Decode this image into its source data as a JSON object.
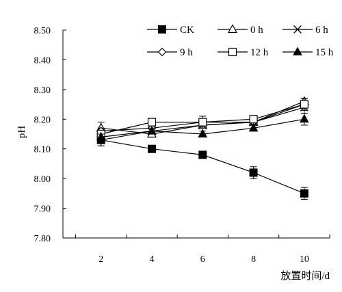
{
  "chart_data": {
    "type": "line",
    "title": "",
    "xlabel": "放置时间/d",
    "ylabel": "pH",
    "x": [
      2,
      4,
      6,
      8,
      10
    ],
    "xticks": [
      "2",
      "4",
      "6",
      "8",
      "10"
    ],
    "xlim": [
      0.5,
      11
    ],
    "ylim": [
      7.8,
      8.5
    ],
    "yticks": [
      "7.80",
      "7.90",
      "8.00",
      "8.10",
      "8.20",
      "8.30",
      "8.40",
      "8.50"
    ],
    "grid": false,
    "legend_position": "top",
    "series": [
      {
        "name": "CK",
        "marker": "filled-square",
        "values": [
          8.13,
          8.1,
          8.08,
          8.02,
          7.95
        ],
        "errors": [
          0.02,
          0.01,
          0.01,
          0.02,
          0.02
        ]
      },
      {
        "name": "0 h",
        "marker": "open-triangle",
        "values": [
          8.17,
          8.15,
          8.18,
          8.19,
          8.26
        ],
        "errors": [
          0.02,
          0.01,
          0.01,
          0.01,
          0.01
        ]
      },
      {
        "name": "6 h",
        "marker": "cross",
        "values": [
          8.13,
          8.16,
          8.18,
          8.19,
          8.24
        ],
        "errors": [
          0.02,
          0.01,
          0.01,
          0.01,
          0.02
        ]
      },
      {
        "name": "9 h",
        "marker": "open-diamond",
        "values": [
          8.16,
          8.17,
          8.19,
          8.19,
          8.25
        ],
        "errors": [
          0.01,
          0.01,
          0.01,
          0.01,
          0.02
        ]
      },
      {
        "name": "12 h",
        "marker": "open-square",
        "values": [
          8.15,
          8.19,
          8.19,
          8.2,
          8.25
        ],
        "errors": [
          0.01,
          0.01,
          0.02,
          0.01,
          0.02
        ]
      },
      {
        "name": "15 h",
        "marker": "filled-triangle",
        "values": [
          8.14,
          8.16,
          8.15,
          8.17,
          8.2
        ],
        "errors": [
          0.01,
          0.01,
          0.01,
          0.01,
          0.02
        ]
      }
    ]
  }
}
